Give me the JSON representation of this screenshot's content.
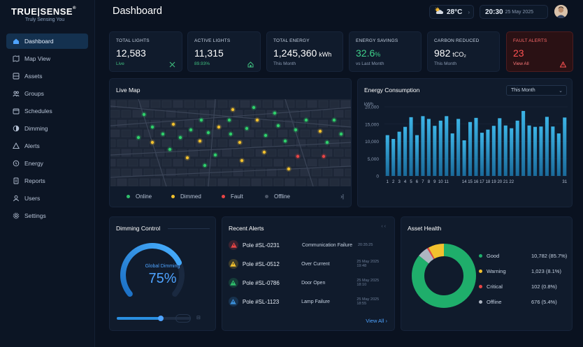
{
  "brand": {
    "name_left": "TRUE",
    "name_right": "SENSE",
    "reg": "®",
    "tagline": "Truly Sensing You"
  },
  "sidebar": {
    "items": [
      {
        "label": "Dashboard",
        "icon": "dashboard-icon",
        "active": true
      },
      {
        "label": "Map View",
        "icon": "map-icon"
      },
      {
        "label": "Assets",
        "icon": "assets-icon"
      },
      {
        "label": "Groups",
        "icon": "groups-icon"
      },
      {
        "label": "Schedules",
        "icon": "calendar-icon"
      },
      {
        "label": "Dimming",
        "icon": "dimming-icon"
      },
      {
        "label": "Alerts",
        "icon": "alert-icon"
      },
      {
        "label": "Energy",
        "icon": "energy-icon"
      },
      {
        "label": "Reports",
        "icon": "reports-icon"
      },
      {
        "label": "Users",
        "icon": "users-icon"
      },
      {
        "label": "Settings",
        "icon": "gear-icon"
      }
    ]
  },
  "header": {
    "title": "Dashboard",
    "weather": {
      "temp": "28°C",
      "icon": "partly-cloudy-icon"
    },
    "time": "20:30",
    "date": "25 May 2025"
  },
  "stats": [
    {
      "label": "TOTAL LIGHTS",
      "value": "12,583",
      "unit": "",
      "sub": "Live",
      "icon": "tools-icon"
    },
    {
      "label": "ACTIVE LIGHTS",
      "value": "11,315",
      "unit": "",
      "sub": "89.93%",
      "icon": "home-icon"
    },
    {
      "label": "TOTAL ENERGY",
      "value": "1,245,360",
      "unit": "kWh",
      "sub": "This Month",
      "icon": ""
    },
    {
      "label": "ENERGY SAVINGS",
      "value": "32.6",
      "unit": "%",
      "sub": "vs Last Month",
      "icon": ""
    },
    {
      "label": "CARBON REDUCED",
      "value": "982",
      "unit": "tCO₂",
      "sub": "This Month",
      "icon": ""
    },
    {
      "label": "FAULT ALERTS",
      "value": "23",
      "unit": "",
      "sub": "View All",
      "icon": "warning-icon"
    }
  ],
  "live_map": {
    "title": "Live Map",
    "legend": [
      {
        "label": "Online",
        "color": "#2fbf6b"
      },
      {
        "label": "Dimmed",
        "color": "#f2c12e"
      },
      {
        "label": "Fault",
        "color": "#e84545"
      },
      {
        "label": "Offline",
        "color": "#4b5566"
      }
    ],
    "expand_icon": "expand-icon"
  },
  "energy": {
    "title": "Energy Consumption",
    "period": "This Month",
    "chart_data": {
      "type": "bar",
      "ylabel": "kWh",
      "ylim": [
        0,
        20000
      ],
      "yticks": [
        "0",
        "5,000",
        "10,000",
        "15,000",
        "20,000"
      ],
      "categories": [
        "1",
        "2",
        "3",
        "4",
        "5",
        "6",
        "7",
        "8",
        "9",
        "10",
        "11",
        "12",
        "13",
        "14",
        "15",
        "16",
        "17",
        "18",
        "19",
        "20",
        "21",
        "22",
        "23",
        "24",
        "25",
        "26",
        "27",
        "28",
        "29",
        "30",
        "31"
      ],
      "values": [
        11800,
        10700,
        12800,
        14200,
        17000,
        11800,
        17300,
        16500,
        14500,
        16000,
        17300,
        12300,
        16500,
        10300,
        15600,
        16800,
        12500,
        13400,
        14500,
        16700,
        14600,
        13800,
        16000,
        18800,
        14600,
        14200,
        14300,
        17100,
        14300,
        12300,
        16900
      ]
    },
    "tick_labels_shown": [
      "1",
      "2",
      "3",
      "4",
      "5",
      "6",
      "7",
      "8",
      "9",
      "10",
      "11",
      "14",
      "15",
      "16",
      "17",
      "18",
      "19",
      "20",
      "21",
      "22",
      "31"
    ],
    "accent": "#2aa3d8"
  },
  "dimming": {
    "title": "Dimming Control",
    "gauge_label": "Global Dimming",
    "value": "75%",
    "level": 0.75,
    "slider_level": 0.75
  },
  "alerts": {
    "title": "Recent Alerts",
    "items": [
      {
        "pole": "Pole #SL-0231",
        "type": "Communication Failure",
        "time": "20:35:25",
        "color": "#e84545"
      },
      {
        "pole": "Pole #SL-0512",
        "type": "Over Current",
        "time": "25 May 2025 19:48",
        "color": "#f2c12e"
      },
      {
        "pole": "Pole #SL-0786",
        "type": "Door Open",
        "time": "25 May 2025 18:10",
        "color": "#2fbf6b"
      },
      {
        "pole": "Pole #SL-1123",
        "type": "Lamp Failure",
        "time": "25 May 2025 18:55",
        "color": "#3b8fd9"
      }
    ],
    "view_all": "View All"
  },
  "asset_health": {
    "title": "Asset Health",
    "items": [
      {
        "label": "Good",
        "value": "10,782 (85.7%)",
        "color": "#1fae6b",
        "pct": 85.7
      },
      {
        "label": "Warning",
        "value": "1,023 (8.1%)",
        "color": "#f2c12e",
        "pct": 8.1
      },
      {
        "label": "Critical",
        "value": "102 (0.8%)",
        "color": "#e84545",
        "pct": 0.8
      },
      {
        "label": "Offline",
        "value": "676 (5.4%)",
        "color": "#aeb6c2",
        "pct": 5.4
      }
    ]
  }
}
